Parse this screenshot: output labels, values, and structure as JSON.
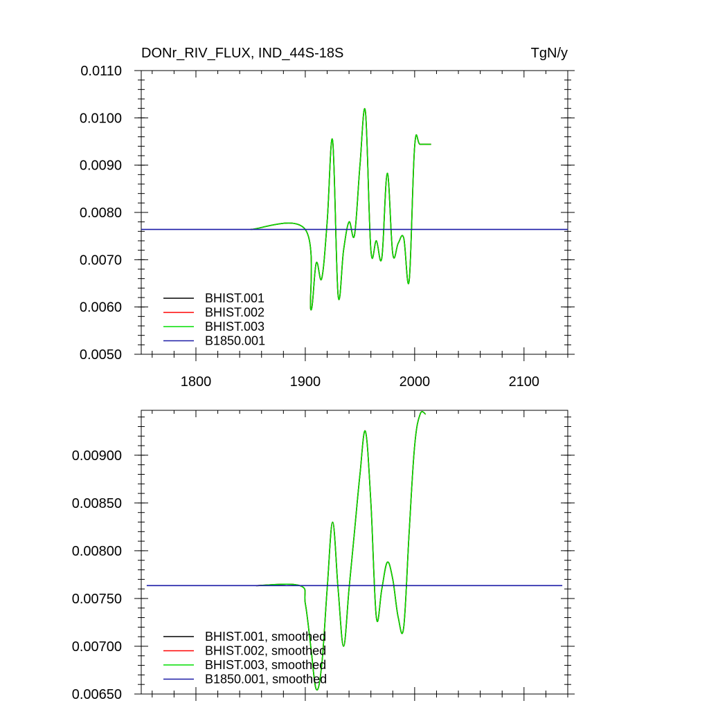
{
  "chart_data": [
    {
      "type": "line",
      "title": "DONr_RIV_FLUX, IND_44S-18S",
      "units": "TgN/y",
      "xlim": [
        1750,
        2140
      ],
      "ylim": [
        0.005,
        0.011
      ],
      "x_ticks": [
        1800,
        1900,
        2000,
        2100
      ],
      "x_tick_labels": [
        "1800",
        "1900",
        "2000",
        "2100"
      ],
      "y_ticks": [
        0.005,
        0.006,
        0.007,
        0.008,
        0.009,
        0.01,
        0.011
      ],
      "y_tick_labels": [
        "0.0050",
        "0.0060",
        "0.0070",
        "0.0080",
        "0.0090",
        "0.0100",
        "0.0110"
      ],
      "grid": false,
      "legend_position": "bottom-left",
      "series": [
        {
          "name": "BHIST.001",
          "color": "#000000",
          "x": [
            1850,
            1900,
            1905,
            1910,
            1915,
            1920,
            1925,
            1930,
            1935,
            1940,
            1945,
            1950,
            1955,
            1960,
            1965,
            1970,
            1975,
            1980,
            1985,
            1990,
            1995,
            2000,
            2005,
            2015
          ],
          "y": [
            0.00764,
            0.00764,
            0.00595,
            0.00693,
            0.0066,
            0.0078,
            0.00952,
            0.00625,
            0.0072,
            0.0078,
            0.00752,
            0.009,
            0.01013,
            0.0072,
            0.0074,
            0.00704,
            0.00883,
            0.00712,
            0.00735,
            0.00746,
            0.00656,
            0.0094,
            0.00944,
            0.00944
          ]
        },
        {
          "name": "BHIST.002",
          "color": "#ff0000",
          "x": [
            1850,
            1900,
            1905,
            1910,
            1915,
            1920,
            1925,
            1930,
            1935,
            1940,
            1945,
            1950,
            1955,
            1960,
            1965,
            1970,
            1975,
            1980,
            1985,
            1990,
            1995,
            2000,
            2005,
            2015
          ],
          "y": [
            0.00764,
            0.00764,
            0.00595,
            0.00693,
            0.0066,
            0.0078,
            0.00952,
            0.00625,
            0.0072,
            0.0078,
            0.00752,
            0.009,
            0.01013,
            0.0072,
            0.0074,
            0.00704,
            0.00883,
            0.00712,
            0.00735,
            0.00746,
            0.00656,
            0.0094,
            0.00944,
            0.00944
          ]
        },
        {
          "name": "BHIST.003",
          "color": "#00dd00",
          "x": [
            1850,
            1900,
            1905,
            1910,
            1915,
            1920,
            1925,
            1930,
            1935,
            1940,
            1945,
            1950,
            1955,
            1960,
            1965,
            1970,
            1975,
            1980,
            1985,
            1990,
            1995,
            2000,
            2005,
            2015
          ],
          "y": [
            0.00764,
            0.00764,
            0.00595,
            0.00693,
            0.0066,
            0.0078,
            0.00952,
            0.00625,
            0.0072,
            0.0078,
            0.00752,
            0.009,
            0.01013,
            0.0072,
            0.0074,
            0.00704,
            0.00883,
            0.00712,
            0.00735,
            0.00746,
            0.00656,
            0.0094,
            0.00944,
            0.00944
          ]
        },
        {
          "name": "B1850.001",
          "color": "#1a1aa6",
          "x": [
            1750,
            2140
          ],
          "y": [
            0.00764,
            0.00764
          ]
        }
      ]
    },
    {
      "type": "line",
      "xlim": [
        1750,
        2140
      ],
      "ylim": [
        0.0065,
        0.00947
      ],
      "x_ticks": [
        1800,
        1900,
        2000,
        2100
      ],
      "y_ticks": [
        0.0065,
        0.007,
        0.0075,
        0.008,
        0.0085,
        0.009
      ],
      "y_tick_labels": [
        "0.00650",
        "0.00700",
        "0.00750",
        "0.00800",
        "0.00850",
        "0.00900"
      ],
      "grid": false,
      "legend_position": "bottom-left",
      "series": [
        {
          "name": "BHIST.001, smoothed",
          "color": "#000000",
          "x": [
            1855,
            1895,
            1900,
            1905,
            1910,
            1915,
            1920,
            1925,
            1930,
            1935,
            1940,
            1945,
            1950,
            1955,
            1960,
            1965,
            1970,
            1975,
            1980,
            1985,
            1990,
            1995,
            2000,
            2005,
            2010
          ],
          "y": [
            0.007635,
            0.007635,
            0.00745,
            0.007,
            0.00655,
            0.0068,
            0.0076,
            0.0083,
            0.0076,
            0.007,
            0.0076,
            0.0082,
            0.0088,
            0.00925,
            0.0085,
            0.0073,
            0.0076,
            0.00788,
            0.0077,
            0.0073,
            0.0072,
            0.0082,
            0.0091,
            0.00943,
            0.00943
          ]
        },
        {
          "name": "BHIST.002, smoothed",
          "color": "#ff0000",
          "x": [
            1855,
            1895,
            1900,
            1905,
            1910,
            1915,
            1920,
            1925,
            1930,
            1935,
            1940,
            1945,
            1950,
            1955,
            1960,
            1965,
            1970,
            1975,
            1980,
            1985,
            1990,
            1995,
            2000,
            2005,
            2010
          ],
          "y": [
            0.007635,
            0.007635,
            0.00745,
            0.007,
            0.00655,
            0.0068,
            0.0076,
            0.0083,
            0.0076,
            0.007,
            0.0076,
            0.0082,
            0.0088,
            0.00925,
            0.0085,
            0.0073,
            0.0076,
            0.00788,
            0.0077,
            0.0073,
            0.0072,
            0.0082,
            0.0091,
            0.00943,
            0.00943
          ]
        },
        {
          "name": "BHIST.003, smoothed",
          "color": "#00dd00",
          "x": [
            1855,
            1895,
            1900,
            1905,
            1910,
            1915,
            1920,
            1925,
            1930,
            1935,
            1940,
            1945,
            1950,
            1955,
            1960,
            1965,
            1970,
            1975,
            1980,
            1985,
            1990,
            1995,
            2000,
            2005,
            2010
          ],
          "y": [
            0.007635,
            0.007635,
            0.00745,
            0.007,
            0.00655,
            0.0068,
            0.0076,
            0.0083,
            0.0076,
            0.007,
            0.0076,
            0.0082,
            0.0088,
            0.00925,
            0.0085,
            0.0073,
            0.0076,
            0.00788,
            0.0077,
            0.0073,
            0.0072,
            0.0082,
            0.0091,
            0.00943,
            0.00943
          ]
        },
        {
          "name": "B1850.001, smoothed",
          "color": "#1a1aa6",
          "x": [
            1755,
            2135
          ],
          "y": [
            0.007635,
            0.007635
          ]
        }
      ]
    }
  ]
}
